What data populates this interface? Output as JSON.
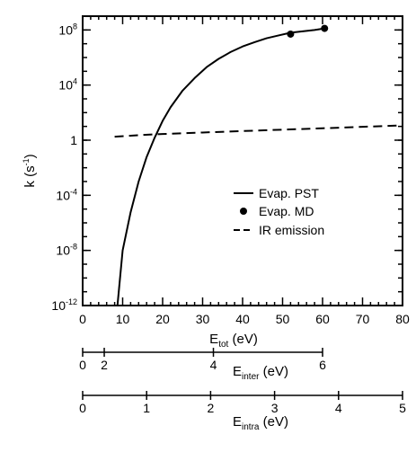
{
  "chart_data": {
    "type": "line",
    "ylabel": "k (s",
    "ylabel_exponent": "-1",
    "ylabel_close": ")",
    "y_scale": "log",
    "ylim": [
      1e-12,
      1000000000.0
    ],
    "y_ticks": [
      {
        "value": 1e-12,
        "base": "10",
        "exp": "-12"
      },
      {
        "value": 1e-08,
        "base": "10",
        "exp": "-8"
      },
      {
        "value": 0.0001,
        "base": "10",
        "exp": "-4"
      },
      {
        "value": 1,
        "base": "1",
        "exp": ""
      },
      {
        "value": 10000.0,
        "base": "10",
        "exp": "4"
      },
      {
        "value": 100000000.0,
        "base": "10",
        "exp": "8"
      }
    ],
    "xlim": [
      0,
      80
    ],
    "x_ticks": [
      "0",
      "10",
      "20",
      "30",
      "40",
      "50",
      "60",
      "70",
      "80"
    ],
    "xlabel": {
      "main": "E",
      "sub": "tot",
      "unit": " (eV)"
    },
    "grid": false,
    "legend_position": "center-right",
    "series": [
      {
        "name": "Evap. PST",
        "style": "solid",
        "marker": "none",
        "x": [
          8.7,
          10,
          12,
          14,
          16,
          18,
          20,
          22,
          25,
          28,
          31,
          34,
          37,
          40,
          43,
          46,
          49,
          52,
          55,
          58,
          60.5
        ],
        "y": [
          1e-12,
          1e-08,
          6e-06,
          0.001,
          0.06,
          1.5,
          25,
          250,
          4000,
          32000.0,
          200000.0,
          800000.0,
          2500000.0,
          6300000.0,
          13000000.0,
          25000000.0,
          40000000.0,
          63000000.0,
          80000000.0,
          100000000.0,
          130000000.0
        ]
      },
      {
        "name": "Evap. MD",
        "style": "none",
        "marker": "circle",
        "x": [
          52,
          60.5
        ],
        "y": [
          50000000.0,
          130000000.0
        ]
      },
      {
        "name": "IR emission",
        "style": "dashed",
        "marker": "none",
        "x": [
          8,
          15,
          20,
          30,
          40,
          50,
          60,
          70,
          80
        ],
        "y": [
          1.8,
          2.4,
          2.8,
          3.6,
          4.6,
          5.8,
          7.3,
          9.3,
          12
        ]
      }
    ],
    "secondary_axes": [
      {
        "label": {
          "main": "E",
          "sub": "inter",
          "unit": " (eV)"
        },
        "ticks": [
          {
            "label": "0",
            "x_tot": 0
          },
          {
            "label": "2",
            "x_tot": 5.4
          },
          {
            "label": "4",
            "x_tot": 32.7
          },
          {
            "label": "6",
            "x_tot": 60
          }
        ]
      },
      {
        "label": {
          "main": "E",
          "sub": "intra",
          "unit": " (eV)"
        },
        "ticks": [
          {
            "label": "0",
            "x_tot": 0
          },
          {
            "label": "1",
            "x_tot": 16
          },
          {
            "label": "2",
            "x_tot": 32
          },
          {
            "label": "3",
            "x_tot": 48
          },
          {
            "label": "4",
            "x_tot": 64
          },
          {
            "label": "5",
            "x_tot": 80
          }
        ]
      }
    ]
  }
}
